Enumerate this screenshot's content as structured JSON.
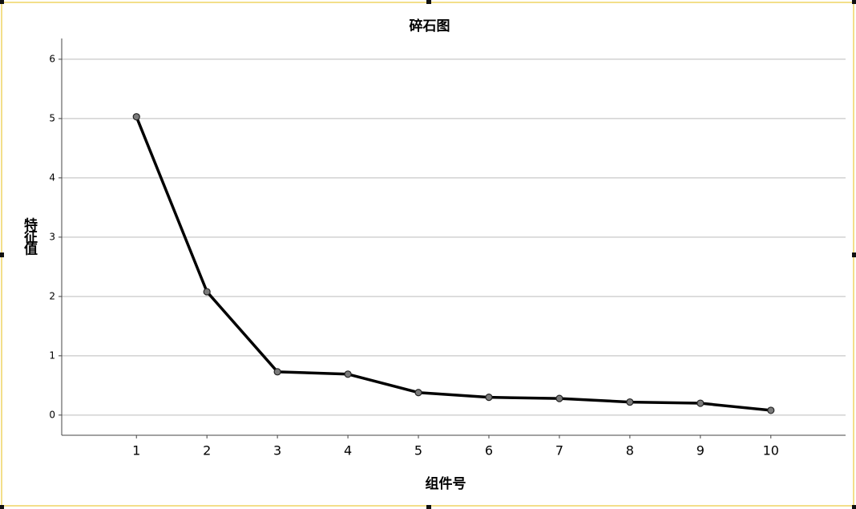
{
  "chart_data": {
    "type": "line",
    "title": "碎石图",
    "xlabel": "组件号",
    "ylabel": "特征值",
    "x": [
      1,
      2,
      3,
      4,
      5,
      6,
      7,
      8,
      9,
      10
    ],
    "series": [
      {
        "color": "#000000",
        "values": [
          5.03,
          2.08,
          0.73,
          0.69,
          0.38,
          0.3,
          0.28,
          0.22,
          0.2,
          0.08
        ]
      }
    ],
    "xlim": [
      -0.06,
      11.06
    ],
    "xticks": [
      1,
      2,
      3,
      4,
      5,
      6,
      7,
      8,
      9,
      10
    ],
    "ylim": [
      -0.34,
      6.35
    ],
    "yticks": [
      0,
      1,
      2,
      3,
      4,
      5,
      6
    ],
    "grid": true
  }
}
